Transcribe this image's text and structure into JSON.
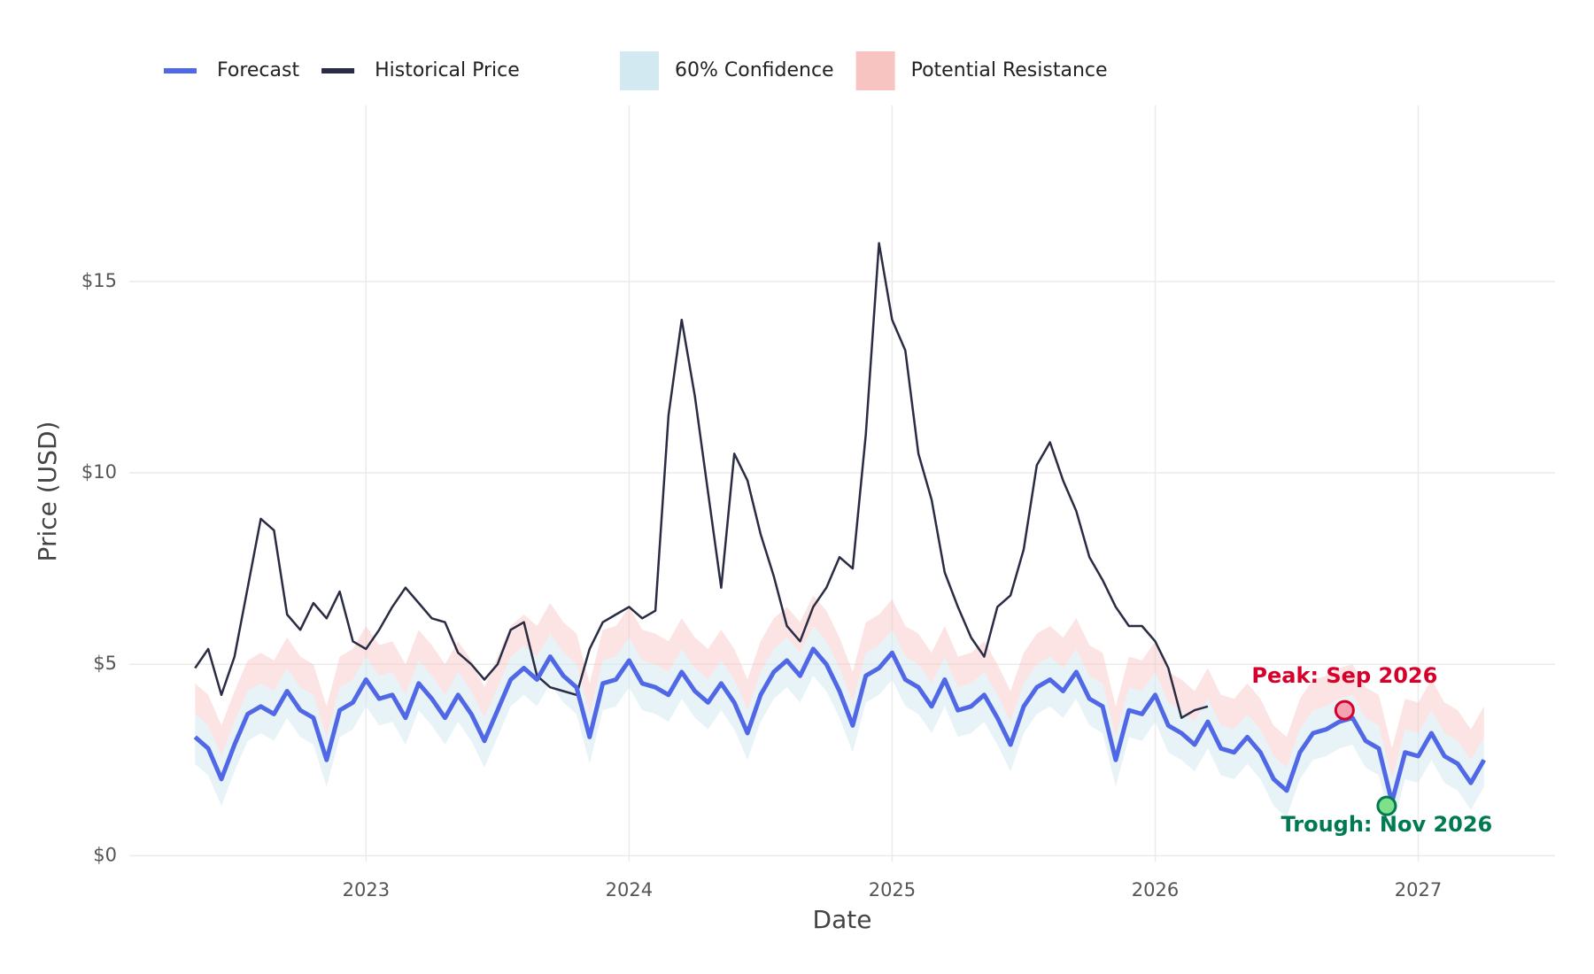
{
  "chart_data": {
    "type": "line",
    "xlabel": "Date",
    "ylabel": "Price (USD)",
    "xlim": [
      2022.1,
      2027.52
    ],
    "xticks": [
      2023,
      2024,
      2025,
      2026,
      2027
    ],
    "ylim": [
      -0.5,
      19.6
    ],
    "yticks": [
      {
        "value": 0,
        "label": "$0"
      },
      {
        "value": 5,
        "label": "$5"
      },
      {
        "value": 10,
        "label": "$10"
      },
      {
        "value": 15,
        "label": "$15"
      }
    ],
    "grid": true,
    "legend": "top-left",
    "x": [
      2022.35,
      2022.4,
      2022.45,
      2022.5,
      2022.55,
      2022.6,
      2022.65,
      2022.7,
      2022.75,
      2022.8,
      2022.85,
      2022.9,
      2022.95,
      2023.0,
      2023.05,
      2023.1,
      2023.15,
      2023.2,
      2023.25,
      2023.3,
      2023.35,
      2023.4,
      2023.45,
      2023.5,
      2023.55,
      2023.6,
      2023.65,
      2023.7,
      2023.75,
      2023.8,
      2023.85,
      2023.9,
      2023.95,
      2024.0,
      2024.05,
      2024.1,
      2024.15,
      2024.2,
      2024.25,
      2024.3,
      2024.35,
      2024.4,
      2024.45,
      2024.5,
      2024.55,
      2024.6,
      2024.65,
      2024.7,
      2024.75,
      2024.8,
      2024.85,
      2024.9,
      2024.95,
      2025.0,
      2025.05,
      2025.1,
      2025.15,
      2025.2,
      2025.25,
      2025.3,
      2025.35,
      2025.4,
      2025.45,
      2025.5,
      2025.55,
      2025.6,
      2025.65,
      2025.7,
      2025.75,
      2025.8,
      2025.85,
      2025.9,
      2025.95,
      2026.0,
      2026.05,
      2026.1,
      2026.15,
      2026.2,
      2026.25,
      2026.3,
      2026.35,
      2026.4,
      2026.45,
      2026.5,
      2026.55,
      2026.6,
      2026.65,
      2026.7,
      2026.75,
      2026.8,
      2026.85,
      2026.9,
      2026.95,
      2027.0,
      2027.05,
      2027.1,
      2027.15,
      2027.2,
      2027.25
    ],
    "bands": [
      {
        "name": "60% Confidence",
        "color": "#d3e9f1",
        "opacity": 0.55,
        "lower": [
          2.4,
          2.1,
          1.3,
          2.2,
          3.0,
          3.2,
          3.0,
          3.6,
          3.1,
          2.9,
          1.8,
          3.1,
          3.3,
          3.9,
          3.4,
          3.5,
          2.9,
          3.8,
          3.4,
          2.9,
          3.5,
          3.0,
          2.3,
          3.1,
          3.9,
          4.2,
          3.9,
          4.5,
          4.0,
          3.7,
          2.4,
          3.8,
          3.9,
          4.4,
          3.8,
          3.7,
          3.5,
          4.1,
          3.6,
          3.3,
          3.8,
          3.3,
          2.5,
          3.5,
          4.1,
          4.4,
          4.0,
          4.7,
          4.3,
          3.6,
          2.7,
          4.0,
          4.2,
          4.6,
          3.9,
          3.7,
          3.2,
          3.9,
          3.1,
          3.2,
          3.5,
          2.9,
          2.2,
          3.2,
          3.7,
          3.9,
          3.6,
          4.1,
          3.4,
          3.2,
          1.8,
          3.1,
          3.0,
          3.5,
          2.7,
          2.5,
          2.2,
          2.8,
          2.1,
          2.0,
          2.4,
          2.0,
          1.3,
          1.0,
          2.0,
          2.5,
          2.6,
          2.8,
          2.9,
          2.3,
          2.1,
          0.7,
          2.0,
          1.9,
          2.5,
          1.9,
          1.7,
          1.2,
          1.8
        ],
        "upper": [
          3.7,
          3.4,
          2.6,
          3.5,
          4.3,
          4.5,
          4.3,
          4.9,
          4.4,
          4.2,
          3.1,
          4.4,
          4.6,
          5.2,
          4.7,
          4.8,
          4.2,
          5.1,
          4.7,
          4.2,
          4.8,
          4.3,
          3.6,
          4.4,
          5.2,
          5.5,
          5.2,
          5.8,
          5.3,
          5.0,
          3.7,
          5.1,
          5.2,
          5.7,
          5.1,
          5.0,
          4.8,
          5.4,
          4.9,
          4.6,
          5.1,
          4.6,
          3.8,
          4.8,
          5.4,
          5.7,
          5.3,
          6.0,
          5.6,
          4.9,
          4.0,
          5.3,
          5.5,
          5.9,
          5.2,
          5.0,
          4.5,
          5.2,
          4.4,
          4.5,
          4.8,
          4.2,
          3.5,
          4.5,
          5.0,
          5.2,
          4.9,
          5.4,
          4.7,
          4.5,
          3.1,
          4.4,
          4.3,
          4.8,
          4.0,
          3.8,
          3.5,
          4.1,
          3.4,
          3.3,
          3.7,
          3.3,
          2.6,
          2.3,
          3.3,
          3.8,
          3.9,
          4.1,
          4.2,
          3.6,
          3.4,
          2.0,
          3.3,
          3.2,
          3.8,
          3.2,
          3.0,
          2.5,
          3.1
        ]
      },
      {
        "name": "Potential Resistance",
        "color": "#f7c4c1",
        "opacity": 0.45,
        "lower": [
          3.7,
          3.4,
          2.6,
          3.5,
          4.3,
          4.5,
          4.3,
          4.9,
          4.4,
          4.2,
          3.1,
          4.4,
          4.6,
          5.2,
          4.7,
          4.8,
          4.2,
          5.1,
          4.7,
          4.2,
          4.8,
          4.3,
          3.6,
          4.4,
          5.2,
          5.5,
          5.2,
          5.8,
          5.3,
          5.0,
          3.7,
          5.1,
          5.2,
          5.7,
          5.1,
          5.0,
          4.8,
          5.4,
          4.9,
          4.6,
          5.1,
          4.6,
          3.8,
          4.8,
          5.4,
          5.7,
          5.3,
          6.0,
          5.6,
          4.9,
          4.0,
          5.3,
          5.5,
          5.9,
          5.2,
          5.0,
          4.5,
          5.2,
          4.4,
          4.5,
          4.8,
          4.2,
          3.5,
          4.5,
          5.0,
          5.2,
          4.9,
          5.4,
          4.7,
          4.5,
          3.1,
          4.4,
          4.3,
          4.8,
          4.0,
          3.8,
          3.5,
          4.1,
          3.4,
          3.3,
          3.7,
          3.3,
          2.6,
          2.3,
          3.3,
          3.8,
          3.9,
          4.1,
          4.2,
          3.6,
          3.4,
          2.0,
          3.3,
          3.2,
          3.8,
          3.2,
          3.0,
          2.5,
          3.1
        ],
        "upper": [
          4.5,
          4.2,
          3.4,
          4.3,
          5.1,
          5.3,
          5.1,
          5.7,
          5.2,
          5.0,
          3.9,
          5.2,
          5.4,
          6.0,
          5.5,
          5.6,
          5.0,
          5.9,
          5.5,
          5.0,
          5.6,
          5.1,
          4.4,
          5.2,
          6.0,
          6.3,
          6.0,
          6.6,
          6.1,
          5.8,
          4.5,
          5.9,
          6.0,
          6.5,
          5.9,
          5.8,
          5.6,
          6.2,
          5.7,
          5.4,
          5.9,
          5.4,
          4.6,
          5.6,
          6.2,
          6.5,
          6.1,
          6.8,
          6.4,
          5.7,
          4.8,
          6.1,
          6.3,
          6.7,
          6.0,
          5.8,
          5.3,
          6.0,
          5.2,
          5.3,
          5.6,
          5.0,
          4.3,
          5.3,
          5.8,
          6.0,
          5.7,
          6.2,
          5.5,
          5.3,
          3.9,
          5.2,
          5.1,
          5.6,
          4.8,
          4.6,
          4.3,
          4.9,
          4.2,
          4.1,
          4.5,
          4.1,
          3.4,
          3.1,
          4.1,
          4.6,
          4.7,
          4.9,
          5.0,
          4.4,
          4.2,
          2.8,
          4.1,
          4.0,
          4.6,
          4.0,
          3.8,
          3.3,
          3.9
        ]
      }
    ],
    "series": [
      {
        "name": "Forecast",
        "color": "#5068e6",
        "width": 5,
        "values": [
          3.1,
          2.8,
          2.0,
          2.9,
          3.7,
          3.9,
          3.7,
          4.3,
          3.8,
          3.6,
          2.5,
          3.8,
          4.0,
          4.6,
          4.1,
          4.2,
          3.6,
          4.5,
          4.1,
          3.6,
          4.2,
          3.7,
          3.0,
          3.8,
          4.6,
          4.9,
          4.6,
          5.2,
          4.7,
          4.4,
          3.1,
          4.5,
          4.6,
          5.1,
          4.5,
          4.4,
          4.2,
          4.8,
          4.3,
          4.0,
          4.5,
          4.0,
          3.2,
          4.2,
          4.8,
          5.1,
          4.7,
          5.4,
          5.0,
          4.3,
          3.4,
          4.7,
          4.9,
          5.3,
          4.6,
          4.4,
          3.9,
          4.6,
          3.8,
          3.9,
          4.2,
          3.6,
          2.9,
          3.9,
          4.4,
          4.6,
          4.3,
          4.8,
          4.1,
          3.9,
          2.5,
          3.8,
          3.7,
          4.2,
          3.4,
          3.2,
          2.9,
          3.5,
          2.8,
          2.7,
          3.1,
          2.7,
          2.0,
          1.7,
          2.7,
          3.2,
          3.3,
          3.5,
          3.6,
          3.0,
          2.8,
          1.4,
          2.7,
          2.6,
          3.2,
          2.6,
          2.4,
          1.9,
          2.5
        ]
      },
      {
        "name": "Historical Price",
        "color": "#2a2c44",
        "width": 2.5,
        "values": [
          4.9,
          5.4,
          4.2,
          5.2,
          7.0,
          8.8,
          8.5,
          6.3,
          5.9,
          6.6,
          6.2,
          6.9,
          5.6,
          5.4,
          5.9,
          6.5,
          7.0,
          6.6,
          6.2,
          6.1,
          5.3,
          5.0,
          4.6,
          5.0,
          5.9,
          6.1,
          4.7,
          4.4,
          4.3,
          4.2,
          5.4,
          6.1,
          6.3,
          6.5,
          6.2,
          6.4,
          11.5,
          14.0,
          12.0,
          9.5,
          7.0,
          10.5,
          9.8,
          8.4,
          7.3,
          6.0,
          5.6,
          6.5,
          7.0,
          7.8,
          7.5,
          11.0,
          16.0,
          14.0,
          13.2,
          10.5,
          9.3,
          7.4,
          6.5,
          5.7,
          5.2,
          6.5,
          6.8,
          8.0,
          10.2,
          10.8,
          9.8,
          9.0,
          7.8,
          7.2,
          6.5,
          6.0,
          6.0,
          5.6,
          4.9,
          3.6,
          3.8,
          3.9,
          null,
          null,
          null,
          null,
          null,
          null,
          null,
          null,
          null,
          null,
          null,
          null,
          null,
          null,
          null,
          null,
          null,
          null,
          null,
          null,
          null
        ]
      }
    ],
    "annotations": [
      {
        "text": "Peak: Sep 2026",
        "x": 2026.72,
        "y": 3.8,
        "color": "#d6002a",
        "fill": "#f5a3b3",
        "position": "above"
      },
      {
        "text": "Trough: Nov 2026",
        "x": 2026.88,
        "y": 1.3,
        "color": "#007a50",
        "fill": "#7fe08c",
        "position": "below"
      }
    ]
  }
}
